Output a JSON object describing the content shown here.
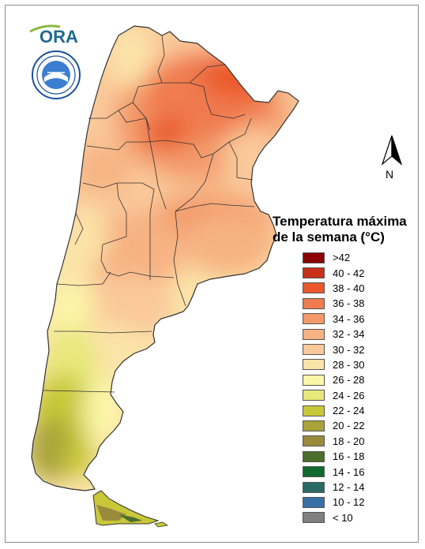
{
  "logo": {
    "text": "ORA",
    "icon": "ora-logo"
  },
  "seal": {
    "icon": "smn-seal-icon"
  },
  "north_arrow": {
    "label": "N"
  },
  "legend": {
    "title_line1": "Temperatura máxima",
    "title_line2": "de la semana (°C)",
    "items": [
      {
        "label": ">42",
        "color": "#8b0000"
      },
      {
        "label": "40 - 42",
        "color": "#c8301a"
      },
      {
        "label": "38 - 40",
        "color": "#ea5a2c"
      },
      {
        "label": "36 - 38",
        "color": "#f07b4f"
      },
      {
        "label": "34 - 36",
        "color": "#f39a6b"
      },
      {
        "label": "32 - 34",
        "color": "#f7b283"
      },
      {
        "label": "30 - 32",
        "color": "#fac99a"
      },
      {
        "label": "28 - 30",
        "color": "#fbe4a9"
      },
      {
        "label": "26 - 28",
        "color": "#fbf6a8"
      },
      {
        "label": "24 - 26",
        "color": "#e8e87b"
      },
      {
        "label": "22 - 24",
        "color": "#c8c738"
      },
      {
        "label": "20 - 22",
        "color": "#a9a33a"
      },
      {
        "label": "18 - 20",
        "color": "#9a8a3c"
      },
      {
        "label": "16 - 18",
        "color": "#4c6e2c"
      },
      {
        "label": "14 - 16",
        "color": "#106a30"
      },
      {
        "label": "12 - 14",
        "color": "#2a6a66"
      },
      {
        "label": "10 - 12",
        "color": "#3a70a8"
      },
      {
        "label": "< 10",
        "color": "#808080"
      }
    ]
  }
}
